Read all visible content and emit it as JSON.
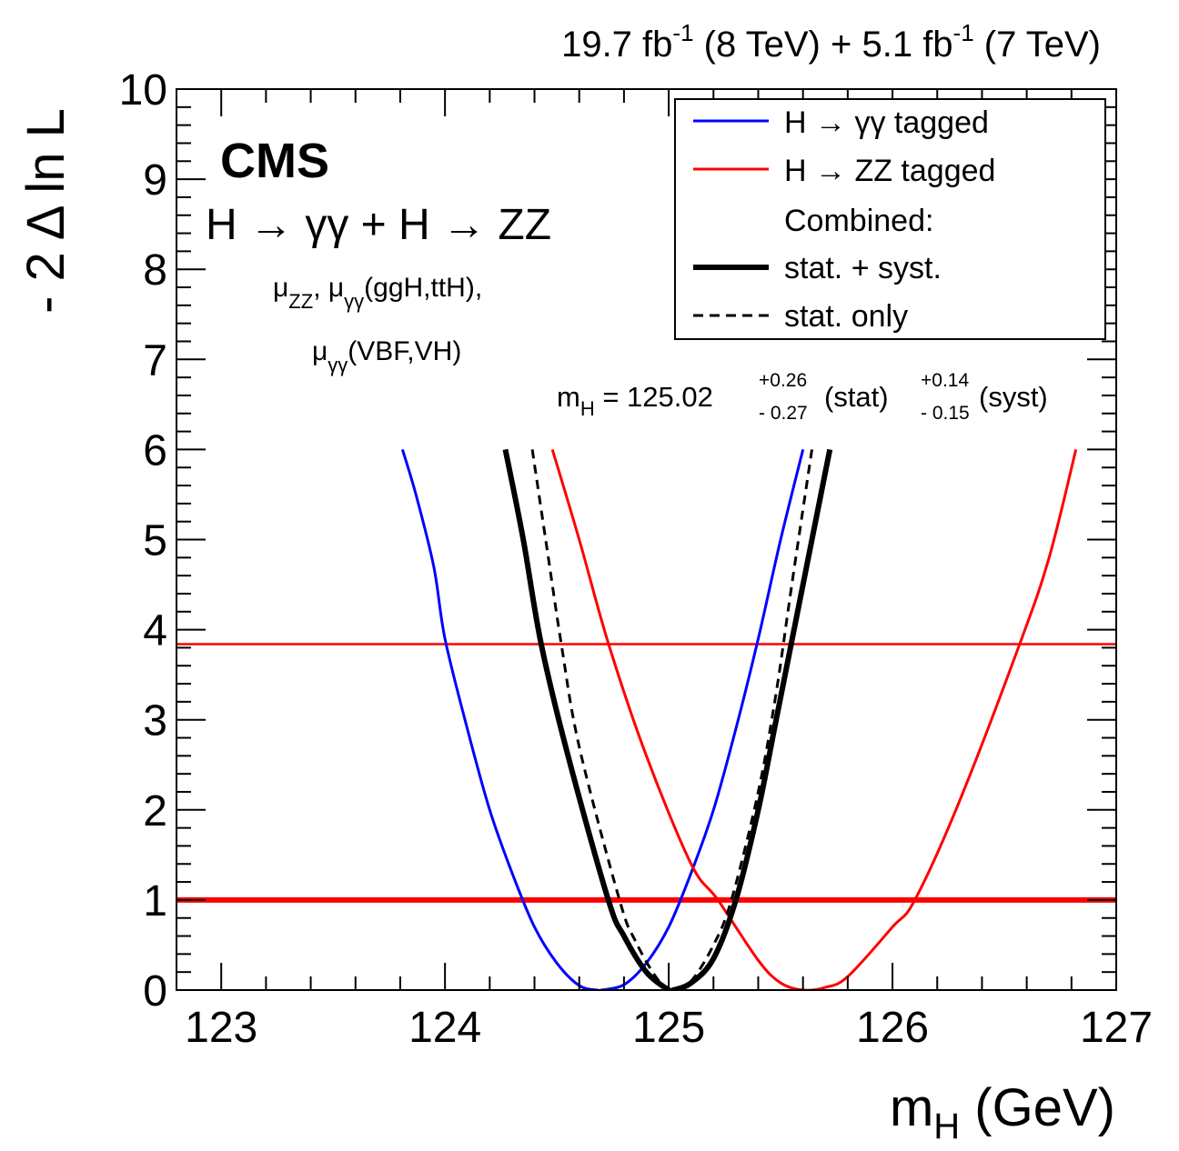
{
  "chart_data": {
    "type": "line",
    "header": {
      "lumi_8_value": "19.7 fb",
      "lumi_8_exp": "-1",
      "lumi_8_energy": "(8 TeV) +",
      "lumi_7_value": "5.1 fb",
      "lumi_7_exp": "-1",
      "lumi_7_energy": "(7 TeV)"
    },
    "experiment": "CMS",
    "channel": "H → γγ + H → ZZ",
    "model_line1": {
      "mu": "μ",
      "zz": "ZZ",
      "sep": ", ",
      "mu2": "μ",
      "gg": "γγ",
      "rest": "(ggH,ttH),"
    },
    "model_line2": {
      "mu": "μ",
      "gg": "γγ",
      "rest": "(VBF,VH)"
    },
    "result": {
      "lhs": "m",
      "lhs_sub": "H",
      "eq": " = 125.02",
      "stat_up": "+0.26",
      "stat_down": "- 0.27",
      "stat_label": " (stat)",
      "syst_up": "+0.14",
      "syst_down": "- 0.15",
      "syst_label": " (syst)"
    },
    "xlabel": {
      "main": "m",
      "sub": "H",
      "unit": " (GeV)"
    },
    "ylabel": "- 2 Δ ln L",
    "xlim": [
      122.8,
      127
    ],
    "ylim": [
      0,
      10
    ],
    "x_ticks": [
      "123",
      "124",
      "125",
      "126",
      "127"
    ],
    "y_ticks": [
      "0",
      "1",
      "2",
      "3",
      "4",
      "5",
      "6",
      "7",
      "8",
      "9",
      "10"
    ],
    "grid": false,
    "legend": {
      "placement": "top-right",
      "entries": [
        {
          "label": "H → γγ tagged",
          "color": "#0000ff",
          "style": "solid"
        },
        {
          "label": "H → ZZ tagged",
          "color": "#ff0000",
          "style": "solid"
        },
        {
          "label": "Combined:",
          "color": "",
          "style": "none"
        },
        {
          "label": "stat. + syst.",
          "color": "#000000",
          "style": "thick"
        },
        {
          "label": "stat. only",
          "color": "#000000",
          "style": "dashed"
        }
      ]
    },
    "reference_lines": [
      {
        "y": 1,
        "color": "#ff0000",
        "width": "thick"
      },
      {
        "y": 3.84,
        "color": "#ff0000",
        "width": "thin"
      }
    ],
    "series": [
      {
        "name": "H → γγ tagged",
        "color": "#0000ff",
        "style": "solid",
        "x": [
          123.81,
          123.87,
          123.95,
          124.0,
          124.1,
          124.2,
          124.3,
          124.4,
          124.5,
          124.6,
          124.68,
          124.7,
          124.8,
          124.9,
          125.0,
          125.1,
          125.2,
          125.3,
          125.4,
          125.5,
          125.6
        ],
        "y": [
          6.0,
          5.5,
          4.7,
          3.9,
          2.9,
          2.0,
          1.3,
          0.7,
          0.3,
          0.05,
          0.0,
          0.0,
          0.06,
          0.3,
          0.7,
          1.3,
          2.0,
          2.9,
          3.9,
          5.0,
          6.0
        ]
      },
      {
        "name": "H → ZZ tagged",
        "color": "#ff0000",
        "style": "solid",
        "x": [
          124.48,
          124.6,
          124.73,
          124.9,
          125.1,
          125.22,
          125.4,
          125.5,
          125.6,
          125.7,
          125.8,
          126.0,
          126.1,
          126.3,
          126.57,
          126.7,
          126.82
        ],
        "y": [
          6.0,
          5.0,
          3.85,
          2.6,
          1.4,
          1.0,
          0.33,
          0.08,
          0.0,
          0.03,
          0.15,
          0.7,
          1.0,
          2.1,
          3.85,
          4.8,
          6.0
        ]
      },
      {
        "name": "stat. + syst.",
        "color": "#000000",
        "style": "thick",
        "x": [
          124.27,
          124.35,
          124.43,
          124.55,
          124.73,
          124.8,
          124.9,
          125.0,
          125.02,
          125.1,
          125.2,
          125.3,
          125.4,
          125.48,
          125.6,
          125.72
        ],
        "y": [
          6.0,
          5.0,
          3.84,
          2.6,
          1.0,
          0.6,
          0.2,
          0.0,
          0.0,
          0.08,
          0.35,
          1.0,
          2.0,
          3.0,
          4.5,
          6.0
        ]
      },
      {
        "name": "stat. only",
        "color": "#000000",
        "style": "dashed",
        "x": [
          124.39,
          124.45,
          124.52,
          124.6,
          124.78,
          124.85,
          124.95,
          125.02,
          125.1,
          125.2,
          125.28,
          125.4,
          125.48,
          125.55,
          125.64
        ],
        "y": [
          6.0,
          5.0,
          3.84,
          2.7,
          1.0,
          0.55,
          0.12,
          0.0,
          0.1,
          0.5,
          1.0,
          2.2,
          3.3,
          4.5,
          6.0
        ]
      }
    ]
  }
}
